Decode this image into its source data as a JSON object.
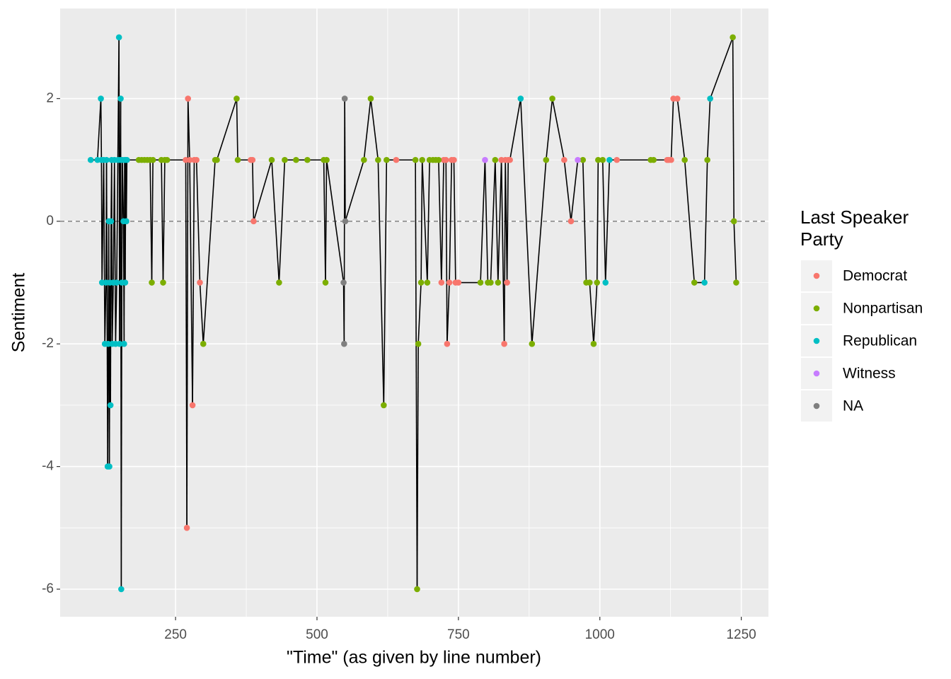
{
  "chart_data": {
    "type": "line",
    "xlabel": "\"Time\" (as given by line number)",
    "ylabel": "Sentiment",
    "legend_title": "Last Speaker Party",
    "xlim": [
      46,
      1298
    ],
    "ylim": [
      -6.45,
      3.47
    ],
    "xticks": [
      250,
      500,
      750,
      1000,
      1250
    ],
    "yticks": [
      -6,
      -4,
      -2,
      0,
      2
    ],
    "hline": 0,
    "grid": true,
    "legend": "right",
    "line_color": "#000000",
    "series": [
      {
        "name": "Democrat",
        "color": "#F8766D",
        "x": [
          268,
          270,
          272,
          275,
          280,
          283,
          287,
          293,
          383,
          386,
          388,
          640,
          720,
          724,
          728,
          730,
          734,
          738,
          742,
          745,
          750,
          826,
          831,
          833,
          836,
          838,
          841,
          937,
          949,
          1030,
          1119,
          1122,
          1126,
          1130,
          1137
        ],
        "values": [
          1,
          -5,
          2,
          1,
          -3,
          1,
          1,
          -1,
          1,
          1,
          0,
          1,
          -1,
          1,
          1,
          -2,
          -1,
          1,
          1,
          -1,
          -1,
          1,
          -2,
          1,
          -1,
          1,
          1,
          1,
          0,
          1,
          1,
          1,
          1,
          2,
          2
        ]
      },
      {
        "name": "Nonpartisan",
        "color": "#7CAE00",
        "x": [
          185,
          190,
          195,
          200,
          205,
          208,
          210,
          225,
          228,
          231,
          235,
          299,
          320,
          323,
          358,
          360,
          420,
          433,
          443,
          463,
          483,
          512,
          515,
          517,
          583,
          595,
          608,
          618,
          623,
          674,
          677,
          679,
          684,
          686,
          695,
          699,
          705,
          710,
          715,
          789,
          802,
          807,
          815,
          820,
          880,
          905,
          916,
          970,
          976,
          982,
          989,
          995,
          997,
          1005,
          1090,
          1095,
          1150,
          1167,
          1190,
          1235,
          1237,
          1241
        ],
        "values": [
          1,
          1,
          1,
          1,
          1,
          -1,
          1,
          1,
          -1,
          1,
          1,
          -2,
          1,
          1,
          2,
          1,
          1,
          -1,
          1,
          1,
          1,
          1,
          -1,
          1,
          1,
          2,
          1,
          -3,
          1,
          1,
          -6,
          -2,
          -1,
          1,
          -1,
          1,
          1,
          1,
          1,
          -1,
          -1,
          -1,
          1,
          -1,
          -2,
          1,
          2,
          1,
          -1,
          -1,
          -2,
          -1,
          1,
          1,
          1,
          1,
          1,
          -1,
          1,
          3,
          0,
          -1
        ]
      },
      {
        "name": "Republican",
        "color": "#00BFC4",
        "x": [
          100,
          112,
          118,
          119,
          120,
          123,
          125,
          127,
          128,
          130,
          131,
          132,
          133,
          134,
          135,
          136,
          137,
          138,
          140,
          142,
          144,
          146,
          148,
          150,
          151,
          152,
          153,
          154,
          155,
          156,
          158,
          159,
          160,
          161,
          162,
          163,
          164,
          860,
          1010,
          1017,
          1185,
          1195
        ],
        "values": [
          1,
          1,
          2,
          1,
          -1,
          1,
          -2,
          -1,
          1,
          -4,
          -2,
          0,
          -4,
          -1,
          -3,
          0,
          1,
          -2,
          -1,
          1,
          -2,
          -1,
          1,
          3,
          -2,
          1,
          2,
          -6,
          -1,
          1,
          0,
          -2,
          1,
          -1,
          1,
          0,
          1,
          2,
          -1,
          1,
          -1,
          2
        ]
      },
      {
        "name": "Witness",
        "color": "#C77CFF",
        "x": [
          797,
          961
        ],
        "values": [
          1,
          1
        ]
      },
      {
        "name": "NA",
        "color": "#7F7F7F",
        "x": [
          547,
          548,
          549,
          550
        ],
        "values": [
          -1,
          -2,
          2,
          0
        ]
      }
    ]
  }
}
